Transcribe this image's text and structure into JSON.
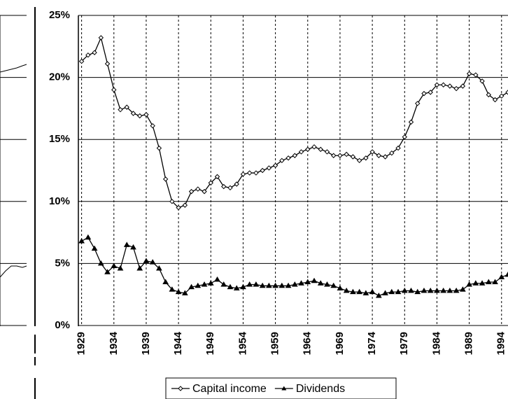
{
  "chart_data": {
    "type": "line",
    "x": [
      1929,
      1930,
      1931,
      1932,
      1933,
      1934,
      1935,
      1936,
      1937,
      1938,
      1939,
      1940,
      1941,
      1942,
      1943,
      1944,
      1945,
      1946,
      1947,
      1948,
      1949,
      1950,
      1951,
      1952,
      1953,
      1954,
      1955,
      1956,
      1957,
      1958,
      1959,
      1960,
      1961,
      1962,
      1963,
      1964,
      1965,
      1966,
      1967,
      1968,
      1969,
      1970,
      1971,
      1972,
      1973,
      1974,
      1975,
      1976,
      1977,
      1978,
      1979,
      1980,
      1981,
      1982,
      1983,
      1984,
      1985,
      1986,
      1987,
      1988,
      1989,
      1990,
      1991,
      1992,
      1993,
      1994,
      1995
    ],
    "series": [
      {
        "name": "Capital income",
        "color": "#000000",
        "marker": "diamond",
        "values": [
          21.3,
          21.8,
          22.0,
          23.2,
          21.1,
          19.0,
          17.4,
          17.6,
          17.1,
          16.9,
          17.0,
          16.1,
          14.3,
          11.8,
          10.0,
          9.5,
          9.7,
          10.8,
          11.0,
          10.8,
          11.5,
          12.0,
          11.2,
          11.1,
          11.4,
          12.2,
          12.3,
          12.3,
          12.5,
          12.7,
          12.9,
          13.3,
          13.5,
          13.7,
          14.0,
          14.2,
          14.4,
          14.2,
          14.0,
          13.7,
          13.7,
          13.8,
          13.6,
          13.3,
          13.5,
          14.0,
          13.7,
          13.6,
          13.9,
          14.3,
          15.2,
          16.4,
          17.9,
          18.7,
          18.8,
          19.4,
          19.4,
          19.3,
          19.1,
          19.3,
          20.3,
          20.2,
          19.7,
          18.6,
          18.2,
          18.5,
          18.8
        ]
      },
      {
        "name": "Dividends",
        "color": "#000000",
        "marker": "triangle",
        "values": [
          6.8,
          7.1,
          6.2,
          5.0,
          4.3,
          4.8,
          4.6,
          6.5,
          6.3,
          4.6,
          5.2,
          5.1,
          4.6,
          3.5,
          2.9,
          2.7,
          2.6,
          3.1,
          3.2,
          3.3,
          3.4,
          3.7,
          3.3,
          3.1,
          3.0,
          3.1,
          3.3,
          3.3,
          3.2,
          3.2,
          3.2,
          3.2,
          3.2,
          3.3,
          3.4,
          3.5,
          3.6,
          3.4,
          3.3,
          3.2,
          3.0,
          2.8,
          2.7,
          2.7,
          2.6,
          2.7,
          2.4,
          2.6,
          2.7,
          2.7,
          2.8,
          2.8,
          2.7,
          2.8,
          2.8,
          2.8,
          2.8,
          2.8,
          2.8,
          2.9,
          3.3,
          3.4,
          3.4,
          3.5,
          3.5,
          3.9,
          4.1
        ]
      }
    ],
    "xlim": [
      1928.5,
      1995
    ],
    "xticks": [
      1929,
      1934,
      1939,
      1944,
      1949,
      1954,
      1959,
      1964,
      1969,
      1974,
      1979,
      1984,
      1989,
      1994
    ],
    "ylim": [
      0,
      25
    ],
    "yticks": [
      {
        "value": 0,
        "label": "0%"
      },
      {
        "value": 5,
        "label": "5%"
      },
      {
        "value": 10,
        "label": "10%"
      },
      {
        "value": 15,
        "label": "15%"
      },
      {
        "value": 20,
        "label": "20%"
      },
      {
        "value": 25,
        "label": "25%"
      }
    ],
    "grid": true,
    "legend": "bottom"
  }
}
